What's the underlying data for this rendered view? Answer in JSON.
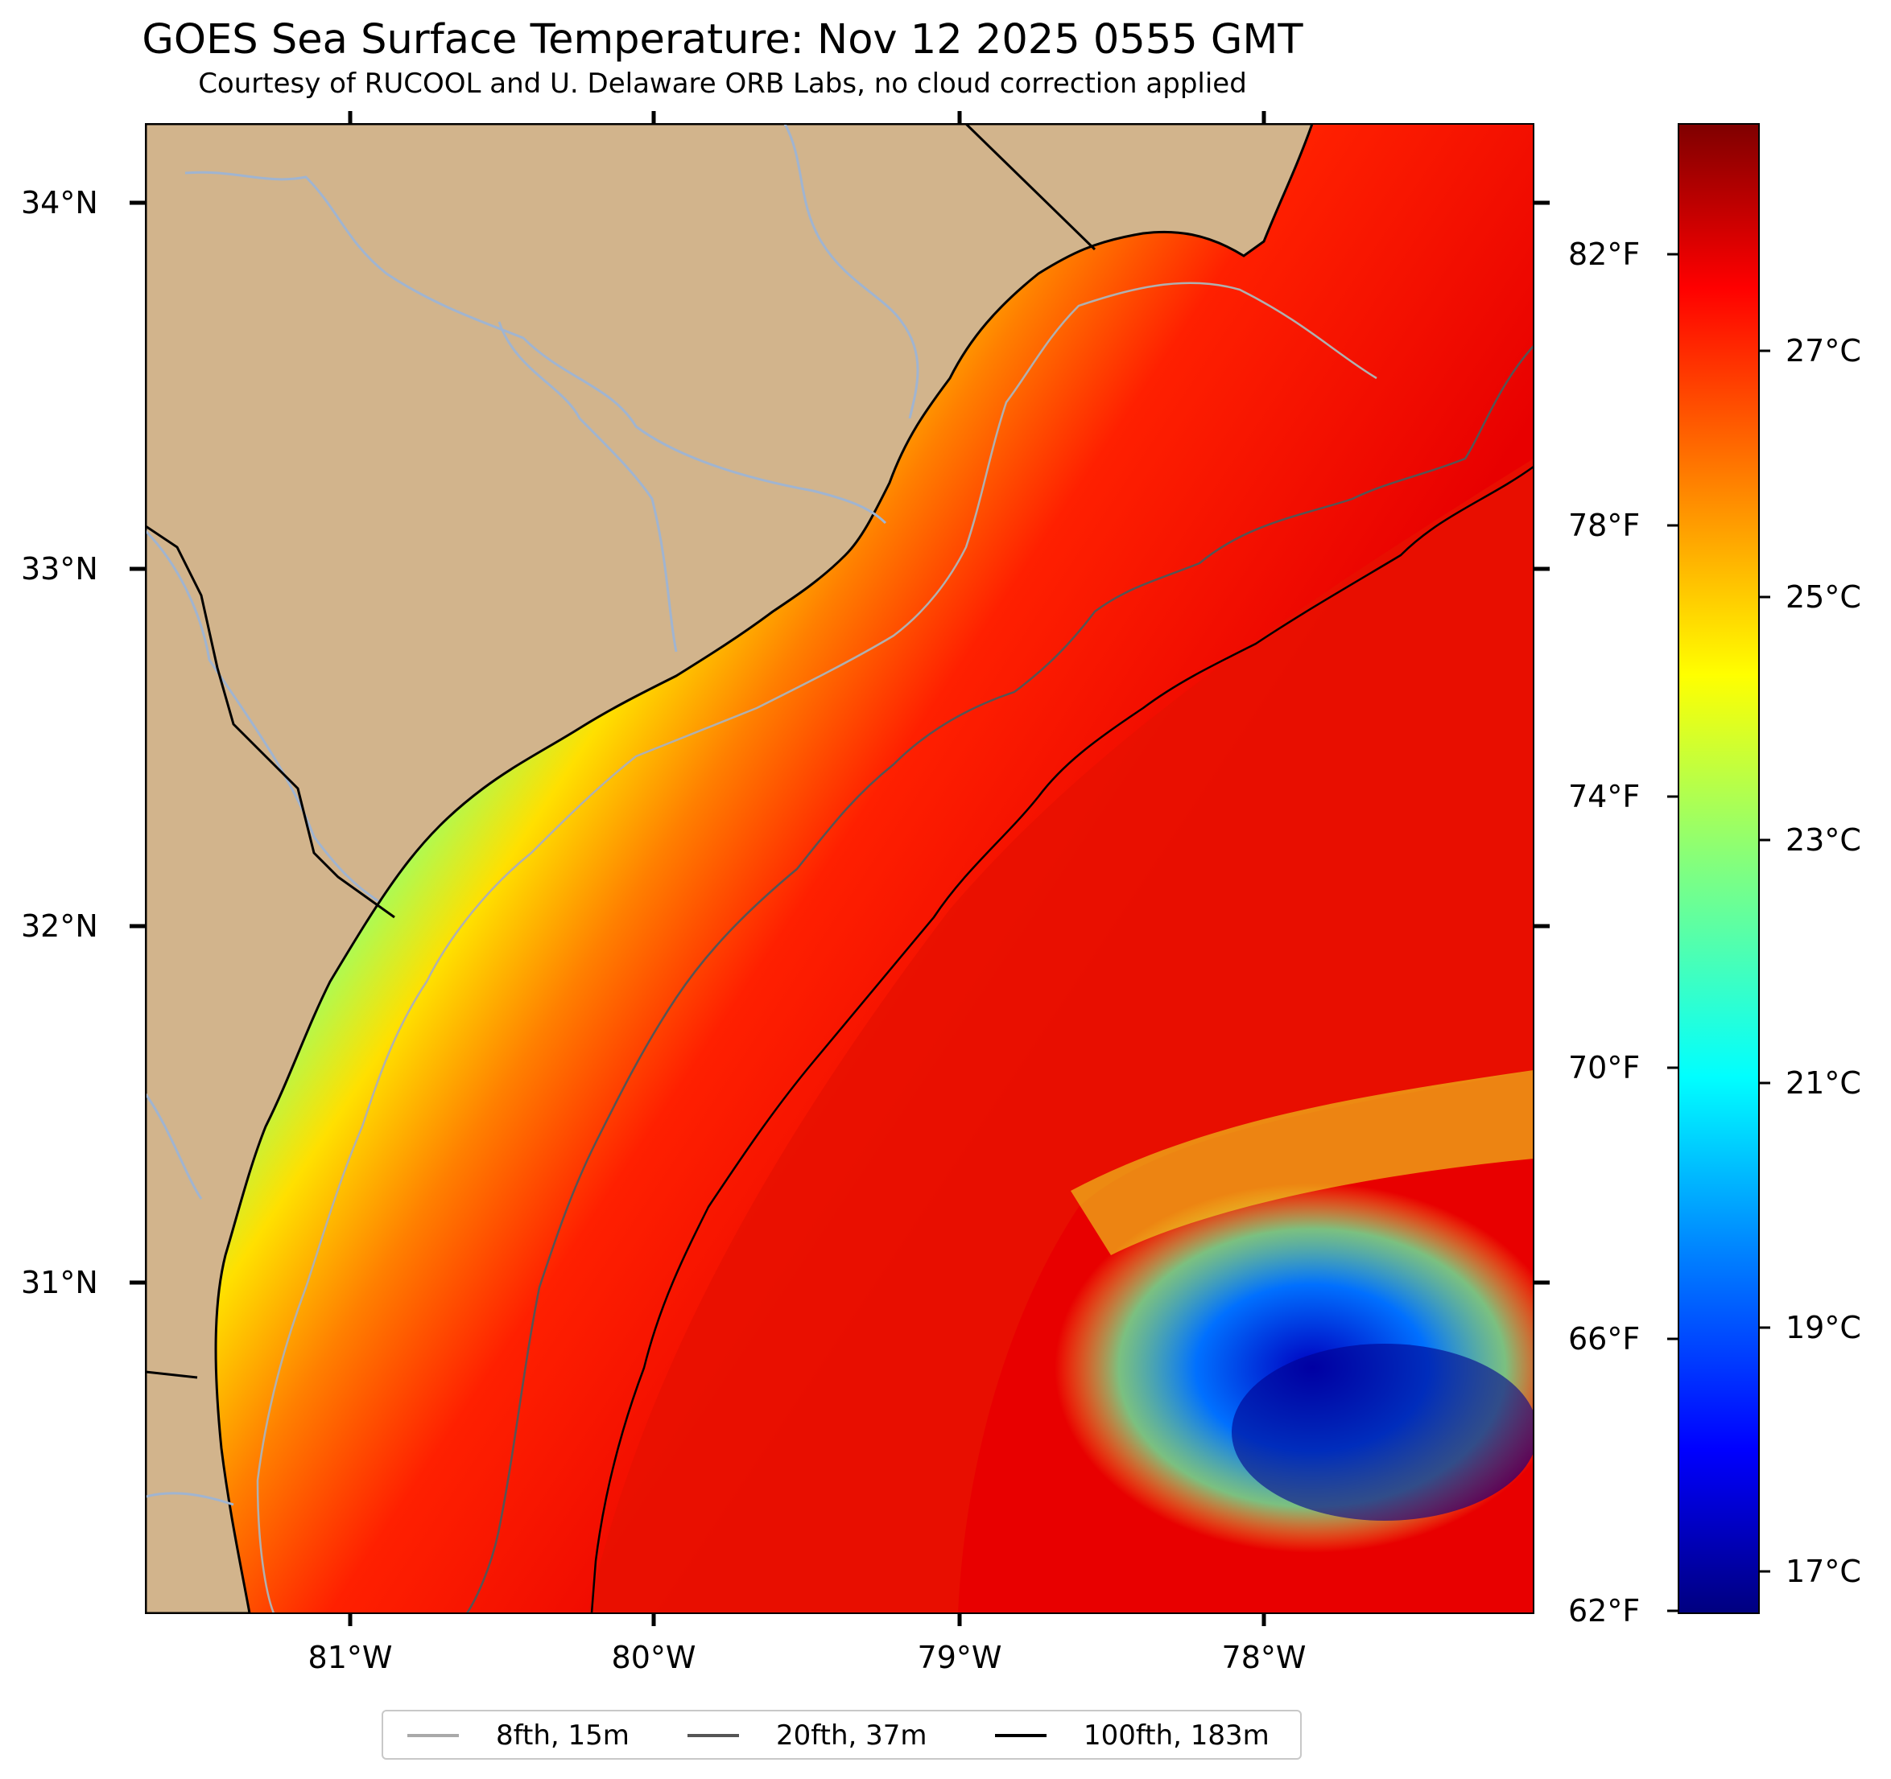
{
  "title": "GOES Sea Surface Temperature: Nov 12 2025 0555 GMT",
  "subtitle": "Courtesy of RUCOOL and U. Delaware ORB Labs, no cloud correction applied",
  "lat_labels": [
    "34°N",
    "33°N",
    "32°N",
    "31°N"
  ],
  "lon_labels": [
    "81°W",
    "80°W",
    "79°W",
    "78°W"
  ],
  "colorbar": {
    "fahrenheit_labels": [
      "82°F",
      "78°F",
      "74°F",
      "70°F",
      "66°F",
      "62°F"
    ],
    "celsius_labels": [
      "27°C",
      "25°C",
      "23°C",
      "21°C",
      "19°C",
      "17°C"
    ],
    "colormap": "jet",
    "colormap_colors": [
      "#00007f",
      "#0000ff",
      "#0080ff",
      "#00ffff",
      "#80ff80",
      "#ffff00",
      "#ff8000",
      "#ff0000",
      "#7f0000"
    ]
  },
  "legend": [
    {
      "label": "8fth, 15m",
      "color": "#a9a9a9"
    },
    {
      "label": "20fth, 37m",
      "color": "#555555"
    },
    {
      "label": "100fth, 183m",
      "color": "#000000"
    }
  ],
  "colors": {
    "land": "#d2b48c",
    "river": "#a0b4d0",
    "border": "#000000"
  }
}
